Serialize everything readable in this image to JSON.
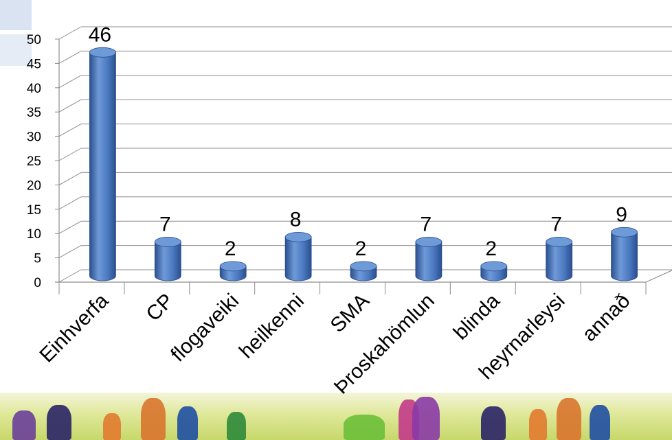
{
  "chart_data": {
    "type": "bar",
    "categories": [
      "Einhverfa",
      "CP",
      "flogaveiki",
      "heilkenni",
      "SMA",
      "Þroskahömlun",
      "blinda",
      "heyrnarleysi",
      "annað"
    ],
    "values": [
      46,
      7,
      2,
      8,
      2,
      7,
      2,
      7,
      9
    ],
    "data_labels": [
      "46",
      "7",
      "2",
      "8",
      "2",
      "7",
      "2",
      "7",
      "9"
    ],
    "ylim": [
      0,
      50
    ],
    "yticks": [
      "0",
      "5",
      "10",
      "15",
      "20",
      "25",
      "30",
      "35",
      "40",
      "45",
      "50"
    ],
    "grid": true,
    "bar_style": "3d-cylinder",
    "colors": {
      "bar_light": "#6f9ad8",
      "bar_mid": "#4a78c0",
      "bar_dark": "#2b4f8e",
      "grid": "#8c8c8c",
      "text": "#000000"
    }
  },
  "decorations": {
    "banner": "colored-figures-banner"
  }
}
